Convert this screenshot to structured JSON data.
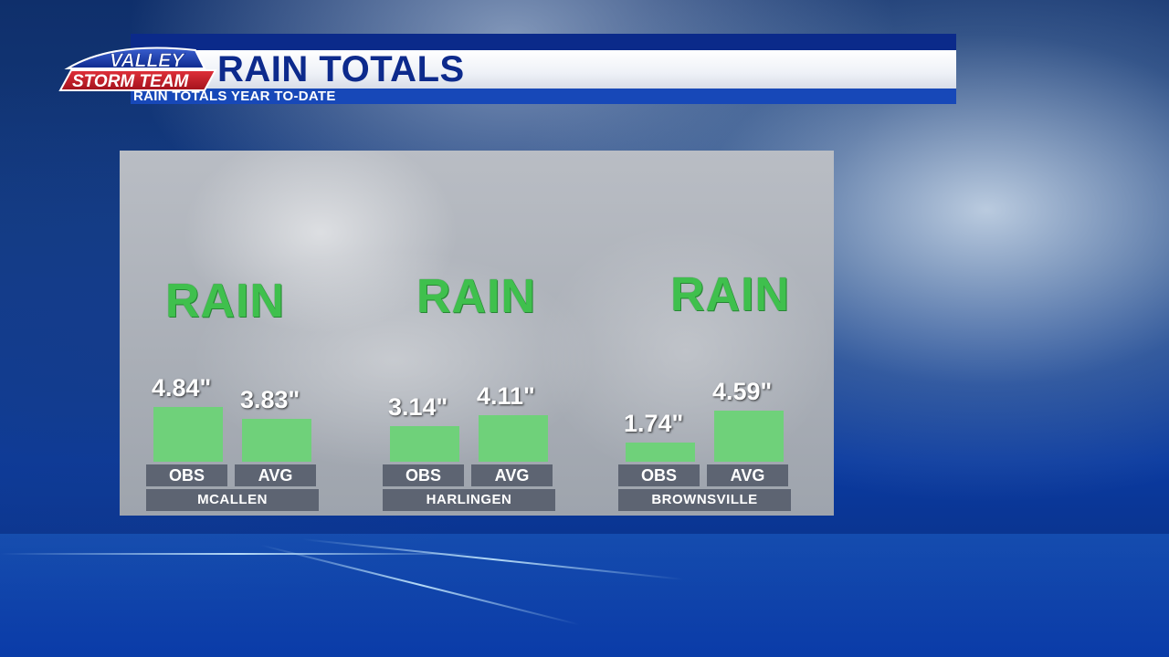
{
  "header": {
    "logo_line1": "VALLEY",
    "logo_line2": "STORM TEAM",
    "title": "RAIN TOTALS",
    "subtitle": "RAIN TOTALS YEAR TO-DATE"
  },
  "colors": {
    "header_blue": "#0d2a8c",
    "bar_green": "#6fd17a",
    "rain_green": "#3fc04d",
    "chip_gray": "#5d6472"
  },
  "chart_data": {
    "type": "bar",
    "watermark_word": "RAIN",
    "series_labels": [
      "OBS",
      "AVG"
    ],
    "groups": [
      {
        "city": "MCALLEN",
        "obs": 4.84,
        "avg": 3.83,
        "obs_label": "4.84\"",
        "avg_label": "3.83\""
      },
      {
        "city": "HARLINGEN",
        "obs": 3.14,
        "avg": 4.11,
        "obs_label": "3.14\"",
        "avg_label": "4.11\""
      },
      {
        "city": "BROWNSVILLE",
        "obs": 1.74,
        "avg": 4.59,
        "obs_label": "1.74\"",
        "avg_label": "4.59\""
      }
    ],
    "unit": "in"
  }
}
